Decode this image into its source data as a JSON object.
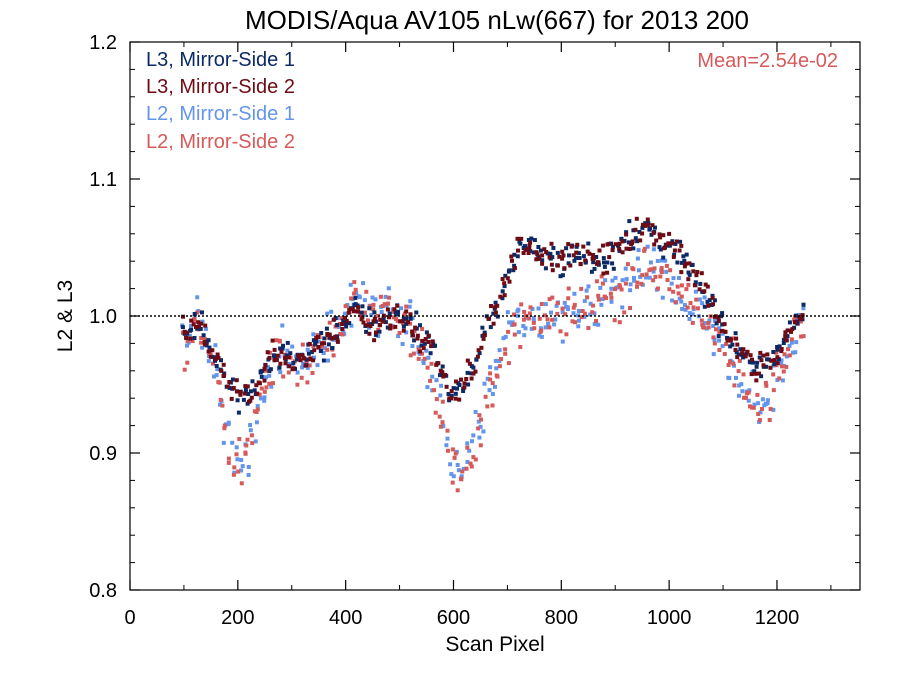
{
  "chart_data": {
    "type": "scatter",
    "title": "MODIS/Aqua AV105 nLw(667) for 2013 200",
    "xlabel": "Scan Pixel",
    "ylabel": "L2 & L3",
    "xlim": [
      0,
      1354
    ],
    "ylim": [
      0.8,
      1.2
    ],
    "xticks": [
      0,
      200,
      400,
      600,
      800,
      1000,
      1200
    ],
    "yticks": [
      0.8,
      0.9,
      1.0,
      1.1,
      1.2
    ],
    "xtick_labels": [
      "0",
      "200",
      "400",
      "600",
      "800",
      "1000",
      "1200"
    ],
    "ytick_labels": [
      "0.8",
      "0.9",
      "1.0",
      "1.1",
      "1.2"
    ],
    "reference_line": {
      "y": 1.0,
      "style": "dotted"
    },
    "annotation": {
      "text": "Mean=2.54e-02",
      "color": "#d65a5a"
    },
    "legend_position": "top-left",
    "series": [
      {
        "name": "L3, Mirror-Side 1",
        "color": "#0b2a66",
        "profile": [
          [
            100,
            0.985
          ],
          [
            130,
            0.995
          ],
          [
            155,
            0.972
          ],
          [
            175,
            0.955
          ],
          [
            195,
            0.945
          ],
          [
            215,
            0.94
          ],
          [
            235,
            0.948
          ],
          [
            255,
            0.968
          ],
          [
            280,
            0.976
          ],
          [
            300,
            0.965
          ],
          [
            330,
            0.972
          ],
          [
            360,
            0.98
          ],
          [
            390,
            0.992
          ],
          [
            420,
            1.005
          ],
          [
            450,
            0.993
          ],
          [
            480,
            1.0
          ],
          [
            510,
            0.995
          ],
          [
            540,
            0.985
          ],
          [
            560,
            0.978
          ],
          [
            580,
            0.955
          ],
          [
            595,
            0.938
          ],
          [
            610,
            0.945
          ],
          [
            640,
            0.965
          ],
          [
            660,
            0.99
          ],
          [
            690,
            1.015
          ],
          [
            710,
            1.04
          ],
          [
            730,
            1.055
          ],
          [
            760,
            1.045
          ],
          [
            800,
            1.04
          ],
          [
            840,
            1.045
          ],
          [
            880,
            1.04
          ],
          [
            910,
            1.05
          ],
          [
            940,
            1.062
          ],
          [
            960,
            1.068
          ],
          [
            985,
            1.055
          ],
          [
            1010,
            1.048
          ],
          [
            1040,
            1.035
          ],
          [
            1070,
            1.015
          ],
          [
            1100,
            0.99
          ],
          [
            1130,
            0.975
          ],
          [
            1160,
            0.962
          ],
          [
            1180,
            0.965
          ],
          [
            1200,
            0.975
          ],
          [
            1220,
            0.985
          ],
          [
            1250,
            1.0
          ]
        ],
        "noise": 0.009,
        "seed": 11
      },
      {
        "name": "L3, Mirror-Side 2",
        "color": "#6e0b14",
        "profile": [
          [
            100,
            0.985
          ],
          [
            130,
            0.995
          ],
          [
            155,
            0.972
          ],
          [
            175,
            0.955
          ],
          [
            195,
            0.945
          ],
          [
            215,
            0.94
          ],
          [
            235,
            0.948
          ],
          [
            255,
            0.968
          ],
          [
            280,
            0.976
          ],
          [
            300,
            0.965
          ],
          [
            330,
            0.972
          ],
          [
            360,
            0.98
          ],
          [
            390,
            0.992
          ],
          [
            420,
            1.005
          ],
          [
            450,
            0.993
          ],
          [
            480,
            1.0
          ],
          [
            510,
            0.995
          ],
          [
            540,
            0.985
          ],
          [
            560,
            0.978
          ],
          [
            580,
            0.955
          ],
          [
            595,
            0.938
          ],
          [
            610,
            0.945
          ],
          [
            640,
            0.965
          ],
          [
            660,
            0.99
          ],
          [
            690,
            1.015
          ],
          [
            710,
            1.04
          ],
          [
            730,
            1.055
          ],
          [
            760,
            1.045
          ],
          [
            800,
            1.04
          ],
          [
            840,
            1.045
          ],
          [
            880,
            1.04
          ],
          [
            910,
            1.05
          ],
          [
            940,
            1.062
          ],
          [
            960,
            1.068
          ],
          [
            985,
            1.055
          ],
          [
            1010,
            1.048
          ],
          [
            1040,
            1.035
          ],
          [
            1070,
            1.015
          ],
          [
            1100,
            0.99
          ],
          [
            1130,
            0.975
          ],
          [
            1160,
            0.962
          ],
          [
            1180,
            0.965
          ],
          [
            1200,
            0.975
          ],
          [
            1220,
            0.985
          ],
          [
            1250,
            1.0
          ]
        ],
        "noise": 0.009,
        "seed": 23
      },
      {
        "name": "L2, Mirror-Side 1",
        "color": "#6495ed",
        "profile": [
          [
            100,
            0.975
          ],
          [
            125,
            1.0
          ],
          [
            150,
            0.975
          ],
          [
            170,
            0.935
          ],
          [
            190,
            0.89
          ],
          [
            205,
            0.895
          ],
          [
            225,
            0.905
          ],
          [
            245,
            0.945
          ],
          [
            270,
            0.97
          ],
          [
            300,
            0.965
          ],
          [
            330,
            0.97
          ],
          [
            360,
            0.98
          ],
          [
            390,
            0.995
          ],
          [
            420,
            1.01
          ],
          [
            450,
            1.0
          ],
          [
            480,
            1.005
          ],
          [
            510,
            0.995
          ],
          [
            540,
            0.98
          ],
          [
            565,
            0.955
          ],
          [
            585,
            0.915
          ],
          [
            600,
            0.885
          ],
          [
            620,
            0.89
          ],
          [
            640,
            0.905
          ],
          [
            660,
            0.935
          ],
          [
            680,
            0.96
          ],
          [
            700,
            0.985
          ],
          [
            730,
            1.0
          ],
          [
            760,
            0.995
          ],
          [
            800,
            1.0
          ],
          [
            840,
            1.005
          ],
          [
            880,
            1.01
          ],
          [
            910,
            1.015
          ],
          [
            940,
            1.03
          ],
          [
            960,
            1.04
          ],
          [
            985,
            1.035
          ],
          [
            1010,
            1.025
          ],
          [
            1040,
            1.01
          ],
          [
            1070,
            0.995
          ],
          [
            1100,
            0.975
          ],
          [
            1130,
            0.955
          ],
          [
            1160,
            0.94
          ],
          [
            1180,
            0.935
          ],
          [
            1200,
            0.955
          ],
          [
            1220,
            0.975
          ],
          [
            1250,
            1.0
          ]
        ],
        "noise": 0.016,
        "seed": 37
      },
      {
        "name": "L2, Mirror-Side 2",
        "color": "#d65a5a",
        "profile": [
          [
            100,
            0.975
          ],
          [
            125,
            1.0
          ],
          [
            150,
            0.975
          ],
          [
            170,
            0.935
          ],
          [
            190,
            0.89
          ],
          [
            205,
            0.895
          ],
          [
            225,
            0.905
          ],
          [
            245,
            0.945
          ],
          [
            270,
            0.97
          ],
          [
            300,
            0.965
          ],
          [
            330,
            0.97
          ],
          [
            360,
            0.98
          ],
          [
            390,
            0.995
          ],
          [
            420,
            1.01
          ],
          [
            450,
            1.0
          ],
          [
            480,
            1.005
          ],
          [
            510,
            0.995
          ],
          [
            540,
            0.98
          ],
          [
            565,
            0.955
          ],
          [
            585,
            0.915
          ],
          [
            600,
            0.885
          ],
          [
            620,
            0.89
          ],
          [
            640,
            0.905
          ],
          [
            660,
            0.935
          ],
          [
            680,
            0.96
          ],
          [
            700,
            0.985
          ],
          [
            730,
            1.0
          ],
          [
            760,
            0.995
          ],
          [
            800,
            1.0
          ],
          [
            840,
            1.005
          ],
          [
            880,
            1.01
          ],
          [
            910,
            1.015
          ],
          [
            940,
            1.03
          ],
          [
            960,
            1.04
          ],
          [
            985,
            1.035
          ],
          [
            1010,
            1.025
          ],
          [
            1040,
            1.01
          ],
          [
            1070,
            0.995
          ],
          [
            1100,
            0.975
          ],
          [
            1130,
            0.955
          ],
          [
            1160,
            0.94
          ],
          [
            1180,
            0.935
          ],
          [
            1200,
            0.955
          ],
          [
            1220,
            0.975
          ],
          [
            1250,
            1.0
          ]
        ],
        "noise": 0.016,
        "seed": 53
      }
    ],
    "x_step": 7
  }
}
